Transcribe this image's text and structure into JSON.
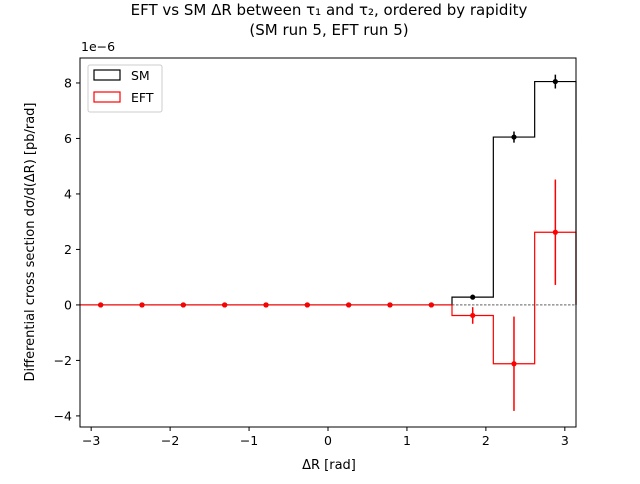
{
  "chart_data": {
    "type": "step-histogram",
    "title_line1": "EFT vs SM ΔR between τ₁ and τ₂, ordered by rapidity",
    "title_line2": "(SM run 5, EFT run 5)",
    "xlabel": "ΔR [rad]",
    "ylabel": "Differential cross section dσ/d(ΔR) [pb/rad]",
    "offset_text": "1e−6",
    "xlim": [
      -3.1416,
      3.1416
    ],
    "ylim": [
      -4.4,
      8.9
    ],
    "y_scale": 1e-06,
    "x_ticks": [
      -3,
      -2,
      -1,
      0,
      1,
      2,
      3
    ],
    "x_tick_labels": [
      "−3",
      "−2",
      "−1",
      "0",
      "1",
      "2",
      "3"
    ],
    "y_ticks": [
      -4,
      -2,
      0,
      2,
      4,
      6,
      8
    ],
    "y_tick_labels": [
      "−4",
      "−2",
      "0",
      "2",
      "4",
      "6",
      "8"
    ],
    "bin_edges": [
      -3.1416,
      -2.618,
      -2.0944,
      -1.5708,
      -1.0472,
      -0.5236,
      0.0,
      0.5236,
      1.0472,
      1.5708,
      2.0944,
      2.618,
      3.1416
    ],
    "bin_centers": [
      -2.88,
      -2.356,
      -1.833,
      -1.309,
      -0.785,
      -0.262,
      0.262,
      0.785,
      1.309,
      1.833,
      2.356,
      2.88
    ],
    "series": [
      {
        "name": "SM",
        "color": "#000000",
        "values": [
          0,
          0,
          0,
          0,
          0,
          0,
          0,
          0,
          0,
          0.28,
          6.05,
          8.05
        ],
        "errors": [
          0,
          0,
          0,
          0,
          0,
          0,
          0,
          0,
          0,
          0.03,
          0.2,
          0.25
        ]
      },
      {
        "name": "EFT",
        "color": "#ff0000",
        "values": [
          0,
          0,
          0,
          0,
          0,
          0,
          0,
          0,
          0,
          -0.38,
          -2.12,
          2.62
        ],
        "errors": [
          0,
          0,
          0,
          0,
          0,
          0,
          0,
          0,
          0,
          0.3,
          1.7,
          1.9
        ]
      }
    ],
    "zero_line": true,
    "grid": false,
    "legend_position": "top-left"
  }
}
